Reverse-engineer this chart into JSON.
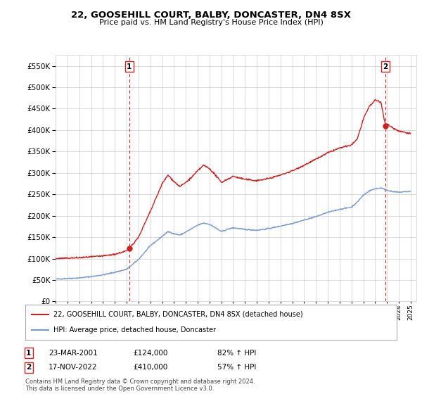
{
  "title": "22, GOOSEHILL COURT, BALBY, DONCASTER, DN4 8SX",
  "subtitle": "Price paid vs. HM Land Registry's House Price Index (HPI)",
  "ytick_values": [
    0,
    50000,
    100000,
    150000,
    200000,
    250000,
    300000,
    350000,
    400000,
    450000,
    500000,
    550000
  ],
  "ylim": [
    0,
    575000
  ],
  "xlim_start": 1995.0,
  "xlim_end": 2025.5,
  "sale1_date": 2001.22,
  "sale1_price": 124000,
  "sale1_label": "1",
  "sale2_date": 2022.88,
  "sale2_price": 410000,
  "sale2_label": "2",
  "legend_line1": "22, GOOSEHILL COURT, BALBY, DONCASTER, DN4 8SX (detached house)",
  "legend_line2": "HPI: Average price, detached house, Doncaster",
  "footer": "Contains HM Land Registry data © Crown copyright and database right 2024.\nThis data is licensed under the Open Government Licence v3.0.",
  "hpi_color": "#7799cc",
  "price_color": "#cc2222",
  "vline_color": "#cc2222",
  "background_color": "#ffffff",
  "grid_color": "#cccccc",
  "hpi_anchors": [
    [
      1995.0,
      52000
    ],
    [
      1996.0,
      53500
    ],
    [
      1997.0,
      55000
    ],
    [
      1998.0,
      58000
    ],
    [
      1999.0,
      62000
    ],
    [
      2000.0,
      68000
    ],
    [
      2001.0,
      75000
    ],
    [
      2002.0,
      98000
    ],
    [
      2003.0,
      130000
    ],
    [
      2004.0,
      152000
    ],
    [
      2004.5,
      163000
    ],
    [
      2005.0,
      158000
    ],
    [
      2005.5,
      155000
    ],
    [
      2006.0,
      162000
    ],
    [
      2006.5,
      170000
    ],
    [
      2007.0,
      178000
    ],
    [
      2007.5,
      183000
    ],
    [
      2008.0,
      180000
    ],
    [
      2008.5,
      172000
    ],
    [
      2009.0,
      163000
    ],
    [
      2009.5,
      168000
    ],
    [
      2010.0,
      172000
    ],
    [
      2011.0,
      168000
    ],
    [
      2012.0,
      166000
    ],
    [
      2013.0,
      170000
    ],
    [
      2014.0,
      176000
    ],
    [
      2015.0,
      182000
    ],
    [
      2016.0,
      190000
    ],
    [
      2017.0,
      198000
    ],
    [
      2018.0,
      208000
    ],
    [
      2019.0,
      215000
    ],
    [
      2020.0,
      220000
    ],
    [
      2020.5,
      232000
    ],
    [
      2021.0,
      248000
    ],
    [
      2021.5,
      258000
    ],
    [
      2022.0,
      263000
    ],
    [
      2022.5,
      265000
    ],
    [
      2023.0,
      260000
    ],
    [
      2023.5,
      256000
    ],
    [
      2024.0,
      255000
    ],
    [
      2025.0,
      257000
    ]
  ],
  "price_anchors": [
    [
      1995.0,
      100000
    ],
    [
      1996.0,
      101000
    ],
    [
      1997.0,
      102000
    ],
    [
      1998.0,
      104000
    ],
    [
      1999.0,
      106000
    ],
    [
      2000.0,
      110000
    ],
    [
      2001.0,
      118000
    ],
    [
      2001.22,
      124000
    ],
    [
      2002.0,
      150000
    ],
    [
      2003.0,
      210000
    ],
    [
      2004.0,
      275000
    ],
    [
      2004.5,
      295000
    ],
    [
      2005.0,
      280000
    ],
    [
      2005.5,
      268000
    ],
    [
      2006.0,
      278000
    ],
    [
      2006.5,
      290000
    ],
    [
      2007.0,
      305000
    ],
    [
      2007.5,
      318000
    ],
    [
      2008.0,
      310000
    ],
    [
      2008.5,
      295000
    ],
    [
      2009.0,
      278000
    ],
    [
      2009.5,
      285000
    ],
    [
      2010.0,
      292000
    ],
    [
      2011.0,
      285000
    ],
    [
      2012.0,
      282000
    ],
    [
      2013.0,
      287000
    ],
    [
      2014.0,
      295000
    ],
    [
      2015.0,
      305000
    ],
    [
      2016.0,
      318000
    ],
    [
      2017.0,
      332000
    ],
    [
      2018.0,
      347000
    ],
    [
      2019.0,
      358000
    ],
    [
      2020.0,
      365000
    ],
    [
      2020.5,
      380000
    ],
    [
      2021.0,
      425000
    ],
    [
      2021.5,
      455000
    ],
    [
      2022.0,
      470000
    ],
    [
      2022.5,
      465000
    ],
    [
      2022.88,
      410000
    ],
    [
      2023.0,
      415000
    ],
    [
      2023.5,
      405000
    ],
    [
      2024.0,
      398000
    ],
    [
      2025.0,
      392000
    ]
  ]
}
